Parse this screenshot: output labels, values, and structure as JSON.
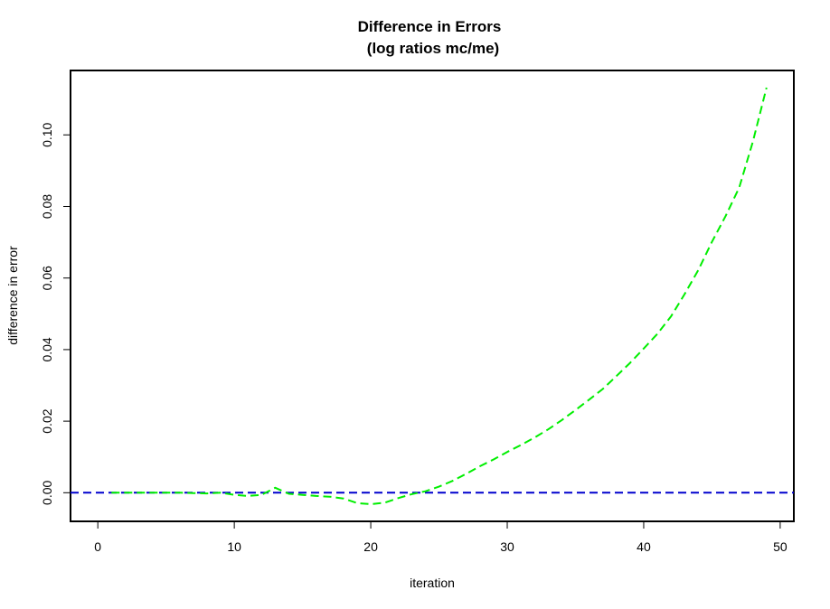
{
  "chart_data": {
    "type": "line",
    "title_line1": "Difference in Errors",
    "title_line2": "(log ratios mc/me)",
    "xlabel": "iteration",
    "ylabel": "difference in error",
    "xlim": [
      -2,
      51
    ],
    "ylim": [
      -0.008,
      0.118
    ],
    "x_ticks": [
      0,
      10,
      20,
      30,
      40,
      50
    ],
    "x_tick_labels": [
      "0",
      "10",
      "20",
      "30",
      "40",
      "50"
    ],
    "y_ticks": [
      0.0,
      0.02,
      0.04,
      0.06,
      0.08,
      0.1
    ],
    "y_tick_labels": [
      "0.00",
      "0.02",
      "0.04",
      "0.06",
      "0.08",
      "0.10"
    ],
    "grid": false,
    "legend": "none",
    "series": [
      {
        "color": "#00ee00",
        "dash": "dashed",
        "x": [
          1,
          2,
          3,
          4,
          5,
          6,
          7,
          8,
          9,
          10,
          11,
          12,
          13,
          14,
          15,
          16,
          17,
          18,
          19,
          20,
          21,
          22,
          23,
          24,
          25,
          26,
          27,
          28,
          29,
          30,
          31,
          32,
          33,
          34,
          35,
          36,
          37,
          38,
          39,
          40,
          41,
          42,
          43,
          44,
          45,
          46,
          47,
          48,
          49
        ],
        "values": [
          0.0,
          0.0,
          0.0,
          0.0,
          0.0,
          0.0,
          -0.0001,
          -0.0002,
          0.0,
          -0.0006,
          -0.0009,
          -0.0006,
          0.0014,
          -0.0003,
          -0.0006,
          -0.0009,
          -0.0011,
          -0.0016,
          -0.0029,
          -0.0032,
          -0.0028,
          -0.0015,
          -0.0004,
          0.0004,
          0.0017,
          0.0033,
          0.0053,
          0.0074,
          0.0093,
          0.0114,
          0.0133,
          0.0154,
          0.0177,
          0.0203,
          0.0231,
          0.026,
          0.029,
          0.0326,
          0.0363,
          0.0403,
          0.0444,
          0.0493,
          0.0555,
          0.0622,
          0.0701,
          0.0773,
          0.0853,
          0.0981,
          0.1132
        ]
      },
      {
        "color": "#0000cd",
        "dash": "dashed",
        "x": [
          -2,
          51
        ],
        "values": [
          0,
          0
        ]
      }
    ]
  }
}
